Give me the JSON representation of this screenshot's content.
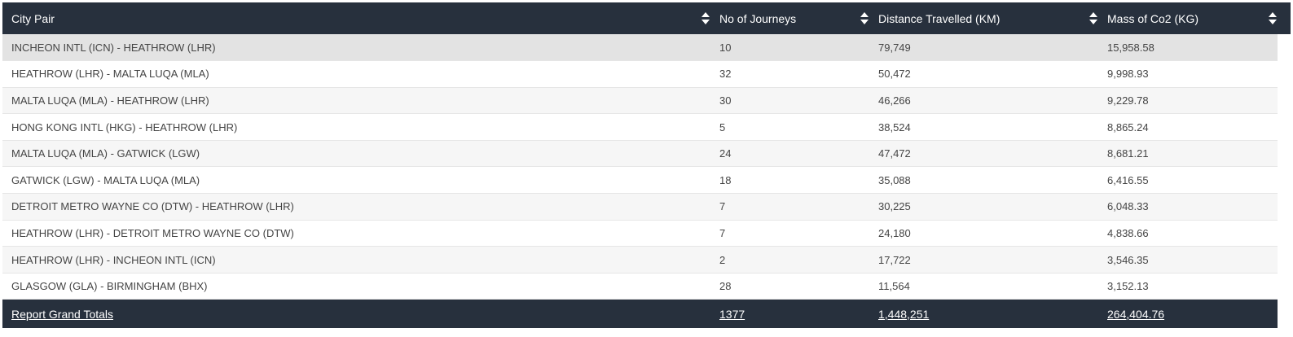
{
  "table": {
    "columns": [
      "City Pair",
      "No of Journeys",
      "Distance Travelled (KM)",
      "Mass of Co2 (KG)"
    ],
    "rows": [
      {
        "pair": "INCHEON INTL (ICN) - HEATHROW (LHR)",
        "journeys": "10",
        "distance": "79,749",
        "co2": "15,958.58"
      },
      {
        "pair": "HEATHROW (LHR) - MALTA LUQA (MLA)",
        "journeys": "32",
        "distance": "50,472",
        "co2": "9,998.93"
      },
      {
        "pair": "MALTA LUQA (MLA) - HEATHROW (LHR)",
        "journeys": "30",
        "distance": "46,266",
        "co2": "9,229.78"
      },
      {
        "pair": "HONG KONG INTL (HKG) - HEATHROW (LHR)",
        "journeys": "5",
        "distance": "38,524",
        "co2": "8,865.24"
      },
      {
        "pair": "MALTA LUQA (MLA) - GATWICK (LGW)",
        "journeys": "24",
        "distance": "47,472",
        "co2": "8,681.21"
      },
      {
        "pair": "GATWICK (LGW) - MALTA LUQA (MLA)",
        "journeys": "18",
        "distance": "35,088",
        "co2": "6,416.55"
      },
      {
        "pair": "DETROIT METRO WAYNE CO (DTW) - HEATHROW (LHR)",
        "journeys": "7",
        "distance": "30,225",
        "co2": "6,048.33"
      },
      {
        "pair": "HEATHROW (LHR) - DETROIT METRO WAYNE CO (DTW)",
        "journeys": "7",
        "distance": "24,180",
        "co2": "4,838.66"
      },
      {
        "pair": "HEATHROW (LHR) - INCHEON INTL (ICN)",
        "journeys": "2",
        "distance": "17,722",
        "co2": "3,546.35"
      },
      {
        "pair": "GLASGOW (GLA) - BIRMINGHAM (BHX)",
        "journeys": "28",
        "distance": "11,564",
        "co2": "3,152.13"
      }
    ],
    "totals": {
      "label": "Report Grand Totals",
      "journeys": "1377",
      "distance": "1,448,251",
      "co2": "264,404.76"
    }
  },
  "icons": {
    "sort": "sort-icon"
  },
  "colors": {
    "header_bg": "#27303d",
    "row_highlight": "#e3e3e3"
  }
}
